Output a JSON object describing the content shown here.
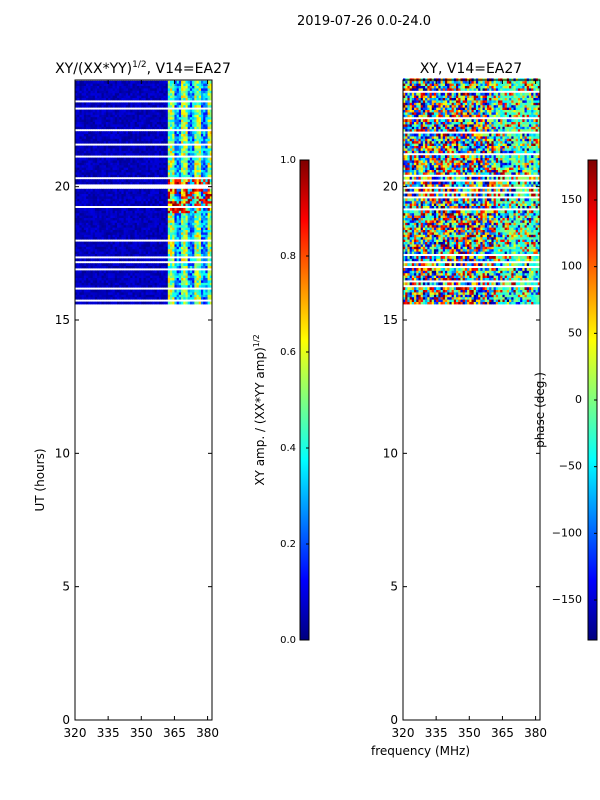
{
  "figure": {
    "suptitle": "2019-07-26 0.0-24.0",
    "shared_xlabel": "frequency (MHz)"
  },
  "chart_data": [
    {
      "type": "heatmap",
      "title_main": "XY/(XX*YY)",
      "title_sup": "1/2",
      "title_rest": ", V14=EA27",
      "xlabel": "",
      "ylabel": "UT (hours)",
      "xlim": [
        320,
        382
      ],
      "ylim": [
        0,
        24
      ],
      "xticks": [
        320,
        335,
        350,
        365,
        380
      ],
      "yticks": [
        0,
        5,
        10,
        15,
        20
      ],
      "data_coverage_ut": [
        15.6,
        24.0
      ],
      "bright_band_mhz": [
        362,
        381
      ],
      "colorbar": {
        "label_main": "XY amp. / (XX*YY amp)",
        "label_sup": "1/2",
        "range": [
          0.0,
          1.0
        ],
        "ticks": [
          "0.0",
          "0.2",
          "0.4",
          "0.6",
          "0.8",
          "1.0"
        ],
        "colormap": "jet"
      }
    },
    {
      "type": "heatmap",
      "title_main": "XY, V14=EA27",
      "xlabel": "frequency (MHz)",
      "ylabel": "",
      "xlim": [
        320,
        382
      ],
      "ylim": [
        0,
        24
      ],
      "xticks": [
        320,
        335,
        350,
        365,
        380
      ],
      "yticks": [
        0,
        5,
        10,
        15,
        20
      ],
      "data_coverage_ut": [
        15.6,
        24.0
      ],
      "colorbar": {
        "label_main": "phase (deg.)",
        "range": [
          -180,
          180
        ],
        "ticks": [
          "−150",
          "−100",
          "−50",
          "0",
          "50",
          "100",
          "150"
        ],
        "tick_values": [
          -150,
          -100,
          -50,
          0,
          50,
          100,
          150
        ],
        "colormap": "jet"
      }
    }
  ],
  "colors": {
    "jet_stops": [
      "#00007f",
      "#0000ff",
      "#007fff",
      "#00ffff",
      "#7fff7f",
      "#ffff00",
      "#ff7f00",
      "#ff0000",
      "#7f0000"
    ],
    "axis": "#000000",
    "background": "#ffffff"
  }
}
